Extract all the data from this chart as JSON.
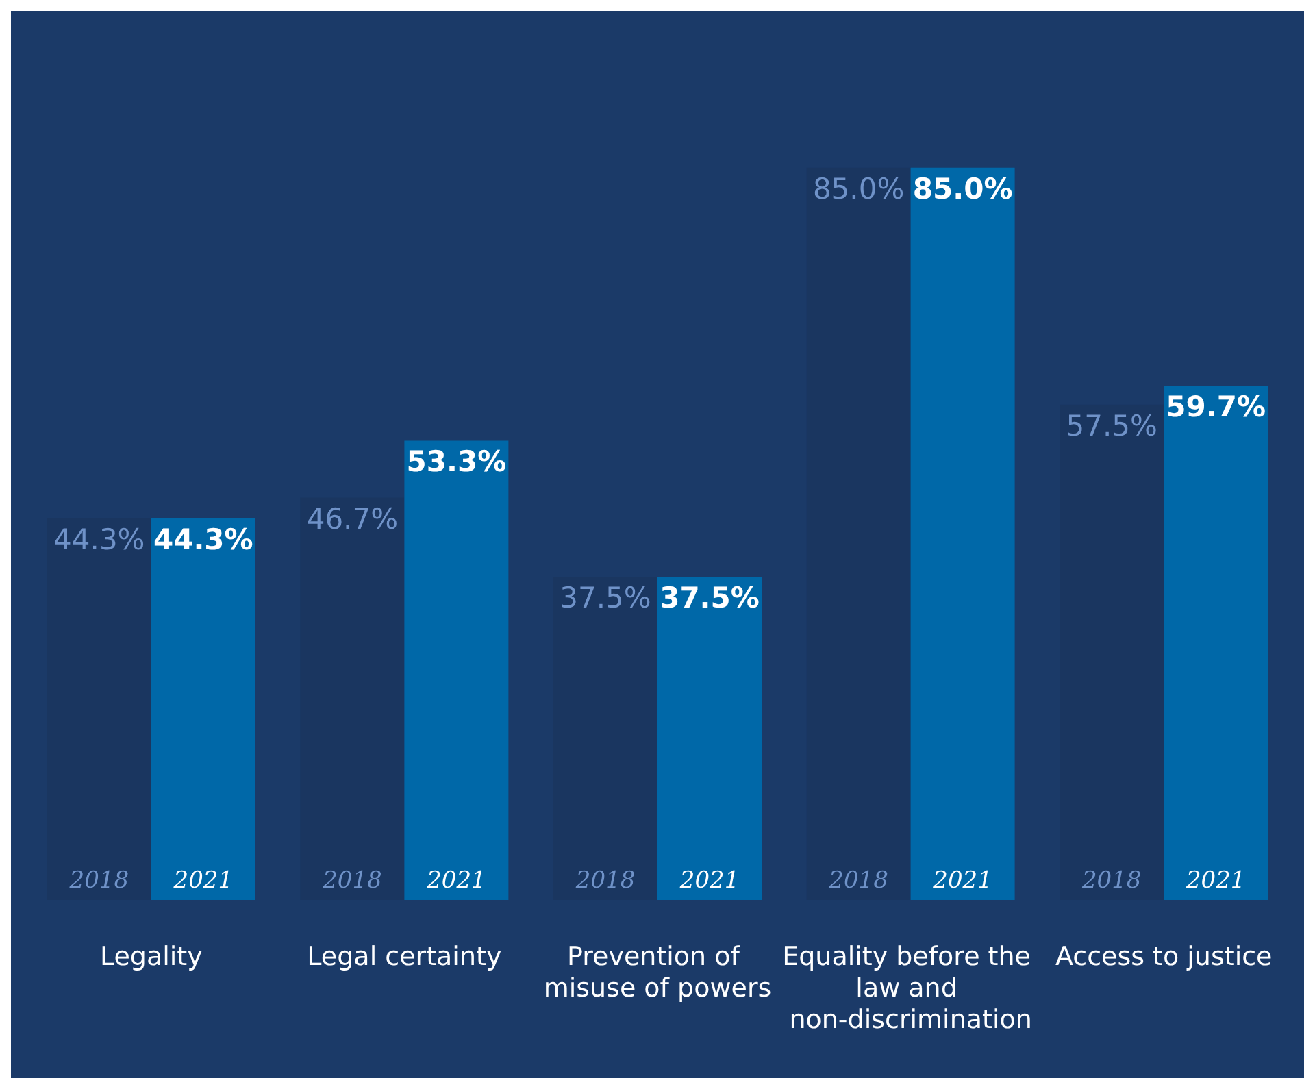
{
  "chart_data": {
    "type": "bar",
    "categories": [
      "Legality",
      "Legal certainty",
      "Prevention of misuse of powers",
      "Equality before the law and non-discrimination",
      "Access to justice"
    ],
    "series": [
      {
        "name": "2018",
        "color": "#1a3660",
        "values": [
          44.3,
          46.7,
          37.5,
          85.0,
          57.5
        ],
        "value_labels": [
          "44.3%",
          "46.7%",
          "37.5%",
          "85.0%",
          "57.5%"
        ]
      },
      {
        "name": "2021",
        "color": "#0068a8",
        "values": [
          44.3,
          53.3,
          37.5,
          85.0,
          59.7
        ],
        "value_labels": [
          "44.3%",
          "53.3%",
          "37.5%",
          "85.0%",
          "59.7%"
        ]
      }
    ],
    "legend": false
  }
}
